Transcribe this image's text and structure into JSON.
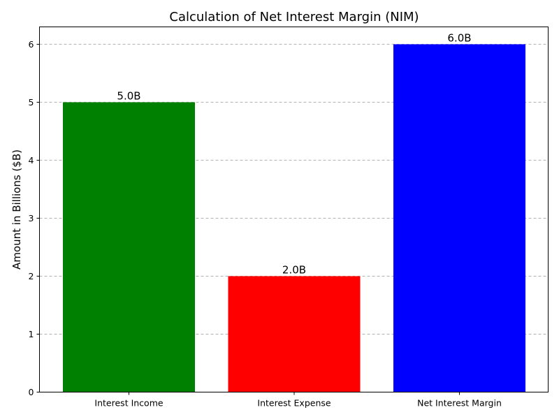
{
  "chart_data": {
    "type": "bar",
    "title": "Calculation of Net Interest Margin (NIM)",
    "xlabel": "",
    "ylabel": "Amount in Billions ($B)",
    "categories": [
      "Interest Income",
      "Interest Expense",
      "Net Interest Margin"
    ],
    "values": [
      5.0,
      2.0,
      6.0
    ],
    "data_labels": [
      "5.0B",
      "2.0B",
      "6.0B"
    ],
    "colors": [
      "#008000",
      "#ff0000",
      "#0000ff"
    ],
    "ylim": [
      0,
      6.3
    ],
    "yticks": [
      0,
      1,
      2,
      3,
      4,
      5,
      6
    ],
    "grid": "y-dashed",
    "legend": "none"
  }
}
